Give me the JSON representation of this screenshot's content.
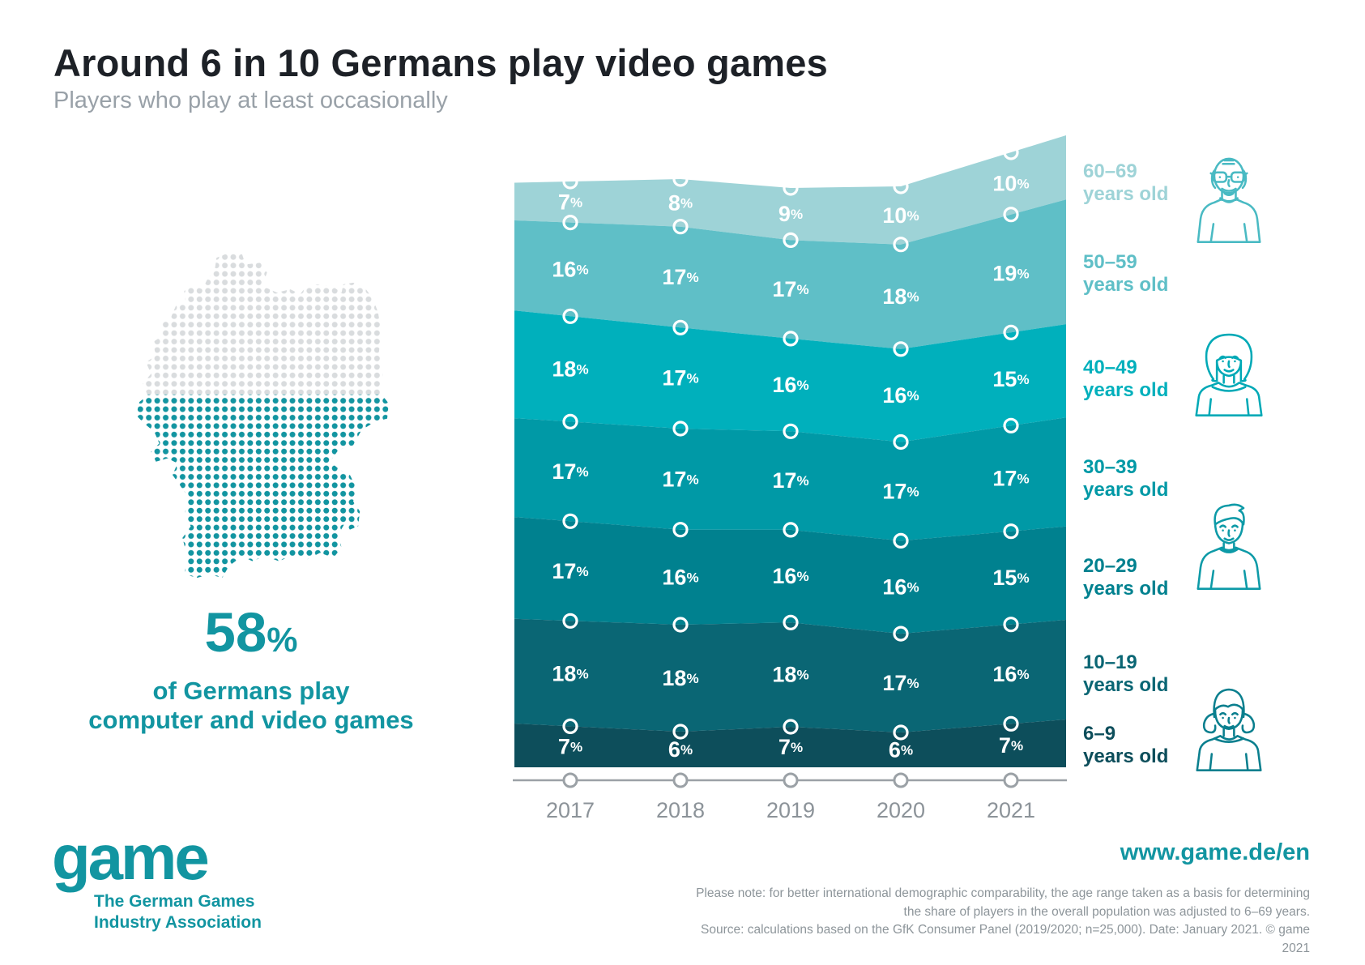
{
  "theme": {
    "brand_teal": "#1295a1",
    "title_color": "#1d2127",
    "subtitle_color": "#99a1a8",
    "axis_color": "#9ba1a6",
    "year_label_color": "#8c9399",
    "value_label_color": "#ffffff",
    "footer_text_color": "#8d959a"
  },
  "header": {
    "title": "Around 6 in 10 Germans play video games",
    "subtitle": "Players who play at least occasionally"
  },
  "map": {
    "played_color": "#1295a1",
    "rest_color": "#d9dcde"
  },
  "stat": {
    "value": "58",
    "suffix": "%",
    "caption_line1": "of Germans play",
    "caption_line2": "computer and video games"
  },
  "chart_data": {
    "type": "area",
    "stacked": true,
    "order": "top-to-bottom",
    "x": [
      "2017",
      "2018",
      "2019",
      "2020",
      "2021"
    ],
    "value_suffix": "%",
    "label_suffix": "years old",
    "grid": false,
    "legend_position": "right",
    "series": [
      {
        "range": "60–69",
        "name": "60–69 years old",
        "values": [
          7,
          8,
          9,
          10,
          10
        ],
        "color": "#9ed3d7"
      },
      {
        "range": "50–59",
        "name": "50–59 years old",
        "values": [
          16,
          17,
          17,
          18,
          19
        ],
        "color": "#5fbfc7"
      },
      {
        "range": "40–49",
        "name": "40–49 years old",
        "values": [
          18,
          17,
          16,
          16,
          15
        ],
        "color": "#00b0bc"
      },
      {
        "range": "30–39",
        "name": "30–39 years old",
        "values": [
          17,
          17,
          17,
          17,
          17
        ],
        "color": "#0099a6"
      },
      {
        "range": "20–29",
        "name": "20–29 years old",
        "values": [
          17,
          16,
          16,
          16,
          15
        ],
        "color": "#00818f"
      },
      {
        "range": "10–19",
        "name": "10–19 years old",
        "values": [
          18,
          18,
          18,
          17,
          16
        ],
        "color": "#0a6674"
      },
      {
        "range": "6–9",
        "name": "6–9 years old",
        "values": [
          7,
          6,
          7,
          6,
          7
        ],
        "color": "#0d4e5b"
      }
    ]
  },
  "legend_icons": [
    {
      "name": "older-man",
      "color": "#49bac3"
    },
    {
      "name": "adult-woman",
      "color": "#00a9b6"
    },
    {
      "name": "young-man",
      "color": "#0d9aa7"
    },
    {
      "name": "girl",
      "color": "#0a7f8e"
    }
  ],
  "logo": {
    "wordmark": "game",
    "tagline_line1": "The German Games",
    "tagline_line2": "Industry Association"
  },
  "footer": {
    "website": "www.game.de/en",
    "note_line1": "Please note: for better international demographic comparability, the age range taken as a basis for determining",
    "note_line2": "the share of players in the overall population was adjusted to 6–69 years.",
    "note_line3": "Source: calculations based on the GfK Consumer Panel (2019/2020; n=25,000). Date: January 2021. © game 2021"
  }
}
